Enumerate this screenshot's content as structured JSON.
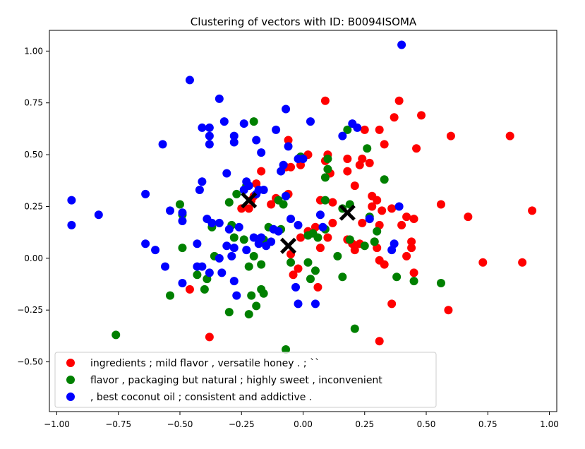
{
  "chart_data": {
    "type": "scatter",
    "title": "Clustering of vectors with ID: B0094ISOMA",
    "xlabel": "",
    "ylabel": "",
    "xlim": [
      -1.03,
      1.03
    ],
    "ylim": [
      -0.74,
      1.1
    ],
    "xticks": [
      -1.0,
      -0.75,
      -0.5,
      -0.25,
      0.0,
      0.25,
      0.5,
      0.75,
      1.0
    ],
    "xtick_labels": [
      "−1.00",
      "−0.75",
      "−0.50",
      "−0.25",
      "0.00",
      "0.25",
      "0.50",
      "0.75",
      "1.00"
    ],
    "yticks": [
      -0.5,
      -0.25,
      0.0,
      0.25,
      0.5,
      0.75,
      1.0
    ],
    "ytick_labels": [
      "−0.50",
      "−0.25",
      "0.00",
      "0.25",
      "0.50",
      "0.75",
      "1.00"
    ],
    "grid": false,
    "legend_position": "lower-left",
    "series": [
      {
        "name": "ingredients ; mild flavor , versatile honey . ; ``",
        "color": "#ff0000",
        "points": [
          [
            0.09,
            0.76
          ],
          [
            0.39,
            0.76
          ],
          [
            0.48,
            0.69
          ],
          [
            0.37,
            0.68
          ],
          [
            0.6,
            0.59
          ],
          [
            0.84,
            0.59
          ],
          [
            0.25,
            0.62
          ],
          [
            0.31,
            0.62
          ],
          [
            0.33,
            0.55
          ],
          [
            0.46,
            0.53
          ],
          [
            -0.06,
            0.57
          ],
          [
            0.02,
            0.5
          ],
          [
            0.1,
            0.5
          ],
          [
            0.09,
            0.47
          ],
          [
            0.18,
            0.48
          ],
          [
            0.24,
            0.48
          ],
          [
            0.23,
            0.45
          ],
          [
            0.27,
            0.46
          ],
          [
            -0.05,
            0.44
          ],
          [
            -0.01,
            0.45
          ],
          [
            -0.07,
            0.44
          ],
          [
            -0.17,
            0.42
          ],
          [
            -0.19,
            0.36
          ],
          [
            0.11,
            0.41
          ],
          [
            0.18,
            0.42
          ],
          [
            -0.2,
            0.3
          ],
          [
            -0.21,
            0.28
          ],
          [
            -0.22,
            0.24
          ],
          [
            -0.25,
            0.24
          ],
          [
            -0.13,
            0.26
          ],
          [
            -0.11,
            0.29
          ],
          [
            -0.06,
            0.31
          ],
          [
            0.07,
            0.28
          ],
          [
            0.12,
            0.27
          ],
          [
            0.21,
            0.35
          ],
          [
            0.28,
            0.3
          ],
          [
            0.3,
            0.28
          ],
          [
            0.28,
            0.25
          ],
          [
            0.32,
            0.23
          ],
          [
            0.36,
            0.24
          ],
          [
            0.56,
            0.26
          ],
          [
            0.93,
            0.23
          ],
          [
            0.67,
            0.2
          ],
          [
            0.42,
            0.2
          ],
          [
            0.45,
            0.19
          ],
          [
            0.4,
            0.16
          ],
          [
            0.31,
            0.16
          ],
          [
            0.27,
            0.19
          ],
          [
            0.24,
            0.17
          ],
          [
            0.12,
            0.17
          ],
          [
            0.05,
            0.15
          ],
          [
            0.02,
            0.13
          ],
          [
            -0.01,
            0.1
          ],
          [
            0.1,
            0.1
          ],
          [
            0.18,
            0.09
          ],
          [
            0.2,
            0.07
          ],
          [
            0.23,
            0.07
          ],
          [
            0.29,
            0.08
          ],
          [
            0.3,
            0.05
          ],
          [
            0.21,
            0.04
          ],
          [
            0.44,
            0.08
          ],
          [
            0.44,
            0.05
          ],
          [
            0.42,
            0.01
          ],
          [
            0.31,
            -0.01
          ],
          [
            0.33,
            -0.03
          ],
          [
            0.45,
            -0.07
          ],
          [
            0.73,
            -0.02
          ],
          [
            0.89,
            -0.02
          ],
          [
            -0.05,
            0.02
          ],
          [
            -0.02,
            -0.05
          ],
          [
            -0.04,
            -0.08
          ],
          [
            0.07,
            0.05
          ],
          [
            0.06,
            -0.14
          ],
          [
            0.36,
            -0.22
          ],
          [
            0.59,
            -0.25
          ],
          [
            -0.46,
            -0.15
          ],
          [
            -0.38,
            -0.38
          ],
          [
            0.31,
            -0.4
          ]
        ]
      },
      {
        "name": "flavor , packaging but natural ; highly sweet , inconvenient",
        "color": "#008000",
        "points": [
          [
            -0.2,
            0.66
          ],
          [
            0.18,
            0.62
          ],
          [
            0.26,
            0.53
          ],
          [
            -0.01,
            0.49
          ],
          [
            0.1,
            0.48
          ],
          [
            0.1,
            0.43
          ],
          [
            0.09,
            0.39
          ],
          [
            0.33,
            0.38
          ],
          [
            -0.23,
            0.35
          ],
          [
            -0.5,
            0.26
          ],
          [
            -0.49,
            0.21
          ],
          [
            -0.3,
            0.27
          ],
          [
            -0.27,
            0.31
          ],
          [
            -0.1,
            0.28
          ],
          [
            -0.07,
            0.3
          ],
          [
            -0.08,
            0.26
          ],
          [
            0.09,
            0.28
          ],
          [
            0.16,
            0.24
          ],
          [
            0.19,
            0.26
          ],
          [
            0.27,
            0.2
          ],
          [
            0.3,
            0.13
          ],
          [
            -0.29,
            0.16
          ],
          [
            -0.37,
            0.15
          ],
          [
            -0.28,
            0.1
          ],
          [
            -0.24,
            0.09
          ],
          [
            -0.16,
            0.09
          ],
          [
            -0.14,
            0.15
          ],
          [
            -0.09,
            0.14
          ],
          [
            0.02,
            0.11
          ],
          [
            0.04,
            0.12
          ],
          [
            0.06,
            0.1
          ],
          [
            0.09,
            0.14
          ],
          [
            0.19,
            0.09
          ],
          [
            0.25,
            0.06
          ],
          [
            0.29,
            0.08
          ],
          [
            -0.49,
            0.05
          ],
          [
            -0.36,
            0.01
          ],
          [
            -0.2,
            0.01
          ],
          [
            -0.22,
            -0.04
          ],
          [
            -0.17,
            -0.03
          ],
          [
            -0.05,
            -0.02
          ],
          [
            0.02,
            -0.02
          ],
          [
            0.14,
            0.01
          ],
          [
            0.05,
            -0.06
          ],
          [
            0.03,
            -0.1
          ],
          [
            -0.43,
            -0.08
          ],
          [
            -0.39,
            -0.1
          ],
          [
            0.16,
            -0.09
          ],
          [
            0.38,
            -0.09
          ],
          [
            0.45,
            -0.11
          ],
          [
            0.56,
            -0.12
          ],
          [
            -0.17,
            -0.15
          ],
          [
            -0.4,
            -0.15
          ],
          [
            -0.16,
            -0.17
          ],
          [
            -0.21,
            -0.18
          ],
          [
            -0.54,
            -0.18
          ],
          [
            -0.19,
            -0.23
          ],
          [
            -0.3,
            -0.26
          ],
          [
            -0.22,
            -0.27
          ],
          [
            0.21,
            -0.34
          ],
          [
            -0.76,
            -0.37
          ],
          [
            -0.07,
            -0.44
          ]
        ]
      },
      {
        "name": ", best coconut oil ; consistent and addictive .",
        "color": "#0000ff",
        "points": [
          [
            0.4,
            1.03
          ],
          [
            -0.46,
            0.86
          ],
          [
            -0.34,
            0.77
          ],
          [
            -0.07,
            0.72
          ],
          [
            -0.32,
            0.66
          ],
          [
            -0.24,
            0.65
          ],
          [
            0.03,
            0.66
          ],
          [
            0.2,
            0.65
          ],
          [
            0.22,
            0.63
          ],
          [
            -0.41,
            0.63
          ],
          [
            -0.38,
            0.63
          ],
          [
            -0.28,
            0.59
          ],
          [
            -0.38,
            0.59
          ],
          [
            -0.11,
            0.62
          ],
          [
            -0.19,
            0.57
          ],
          [
            -0.28,
            0.56
          ],
          [
            -0.57,
            0.55
          ],
          [
            -0.38,
            0.55
          ],
          [
            -0.06,
            0.54
          ],
          [
            -0.17,
            0.51
          ],
          [
            0.16,
            0.59
          ],
          [
            -0.02,
            0.48
          ],
          [
            0.0,
            0.48
          ],
          [
            -0.08,
            0.45
          ],
          [
            -0.09,
            0.42
          ],
          [
            -0.31,
            0.41
          ],
          [
            -0.23,
            0.37
          ],
          [
            -0.22,
            0.35
          ],
          [
            -0.41,
            0.37
          ],
          [
            -0.24,
            0.33
          ],
          [
            -0.19,
            0.31
          ],
          [
            -0.18,
            0.33
          ],
          [
            -0.16,
            0.33
          ],
          [
            -0.42,
            0.33
          ],
          [
            -0.07,
            0.3
          ],
          [
            -0.64,
            0.31
          ],
          [
            -0.94,
            0.28
          ],
          [
            -0.83,
            0.21
          ],
          [
            -0.54,
            0.23
          ],
          [
            -0.49,
            0.22
          ],
          [
            -0.49,
            0.18
          ],
          [
            -0.39,
            0.19
          ],
          [
            -0.37,
            0.17
          ],
          [
            -0.34,
            0.17
          ],
          [
            -0.3,
            0.14
          ],
          [
            -0.26,
            0.15
          ],
          [
            -0.2,
            0.1
          ],
          [
            -0.17,
            0.1
          ],
          [
            -0.12,
            0.14
          ],
          [
            -0.1,
            0.13
          ],
          [
            -0.05,
            0.19
          ],
          [
            -0.02,
            0.16
          ],
          [
            0.07,
            0.21
          ],
          [
            0.08,
            0.15
          ],
          [
            0.27,
            0.19
          ],
          [
            0.39,
            0.25
          ],
          [
            -0.94,
            0.16
          ],
          [
            -0.64,
            0.07
          ],
          [
            -0.6,
            0.04
          ],
          [
            -0.43,
            0.07
          ],
          [
            -0.31,
            0.06
          ],
          [
            -0.28,
            0.05
          ],
          [
            -0.23,
            0.04
          ],
          [
            -0.34,
            0.0
          ],
          [
            -0.29,
            0.01
          ],
          [
            -0.18,
            0.07
          ],
          [
            -0.15,
            0.06
          ],
          [
            -0.13,
            0.08
          ],
          [
            0.37,
            0.07
          ],
          [
            0.36,
            0.04
          ],
          [
            -0.56,
            -0.04
          ],
          [
            -0.43,
            -0.04
          ],
          [
            -0.41,
            -0.04
          ],
          [
            -0.38,
            -0.07
          ],
          [
            -0.33,
            -0.07
          ],
          [
            -0.28,
            -0.11
          ],
          [
            -0.49,
            -0.12
          ],
          [
            -0.27,
            -0.18
          ],
          [
            -0.03,
            -0.14
          ],
          [
            -0.02,
            -0.22
          ],
          [
            0.05,
            -0.22
          ]
        ]
      }
    ],
    "centroids": {
      "marker": "X",
      "color": "#000000",
      "points": [
        [
          -0.22,
          0.28
        ],
        [
          -0.06,
          0.06
        ],
        [
          0.18,
          0.22
        ]
      ]
    }
  }
}
